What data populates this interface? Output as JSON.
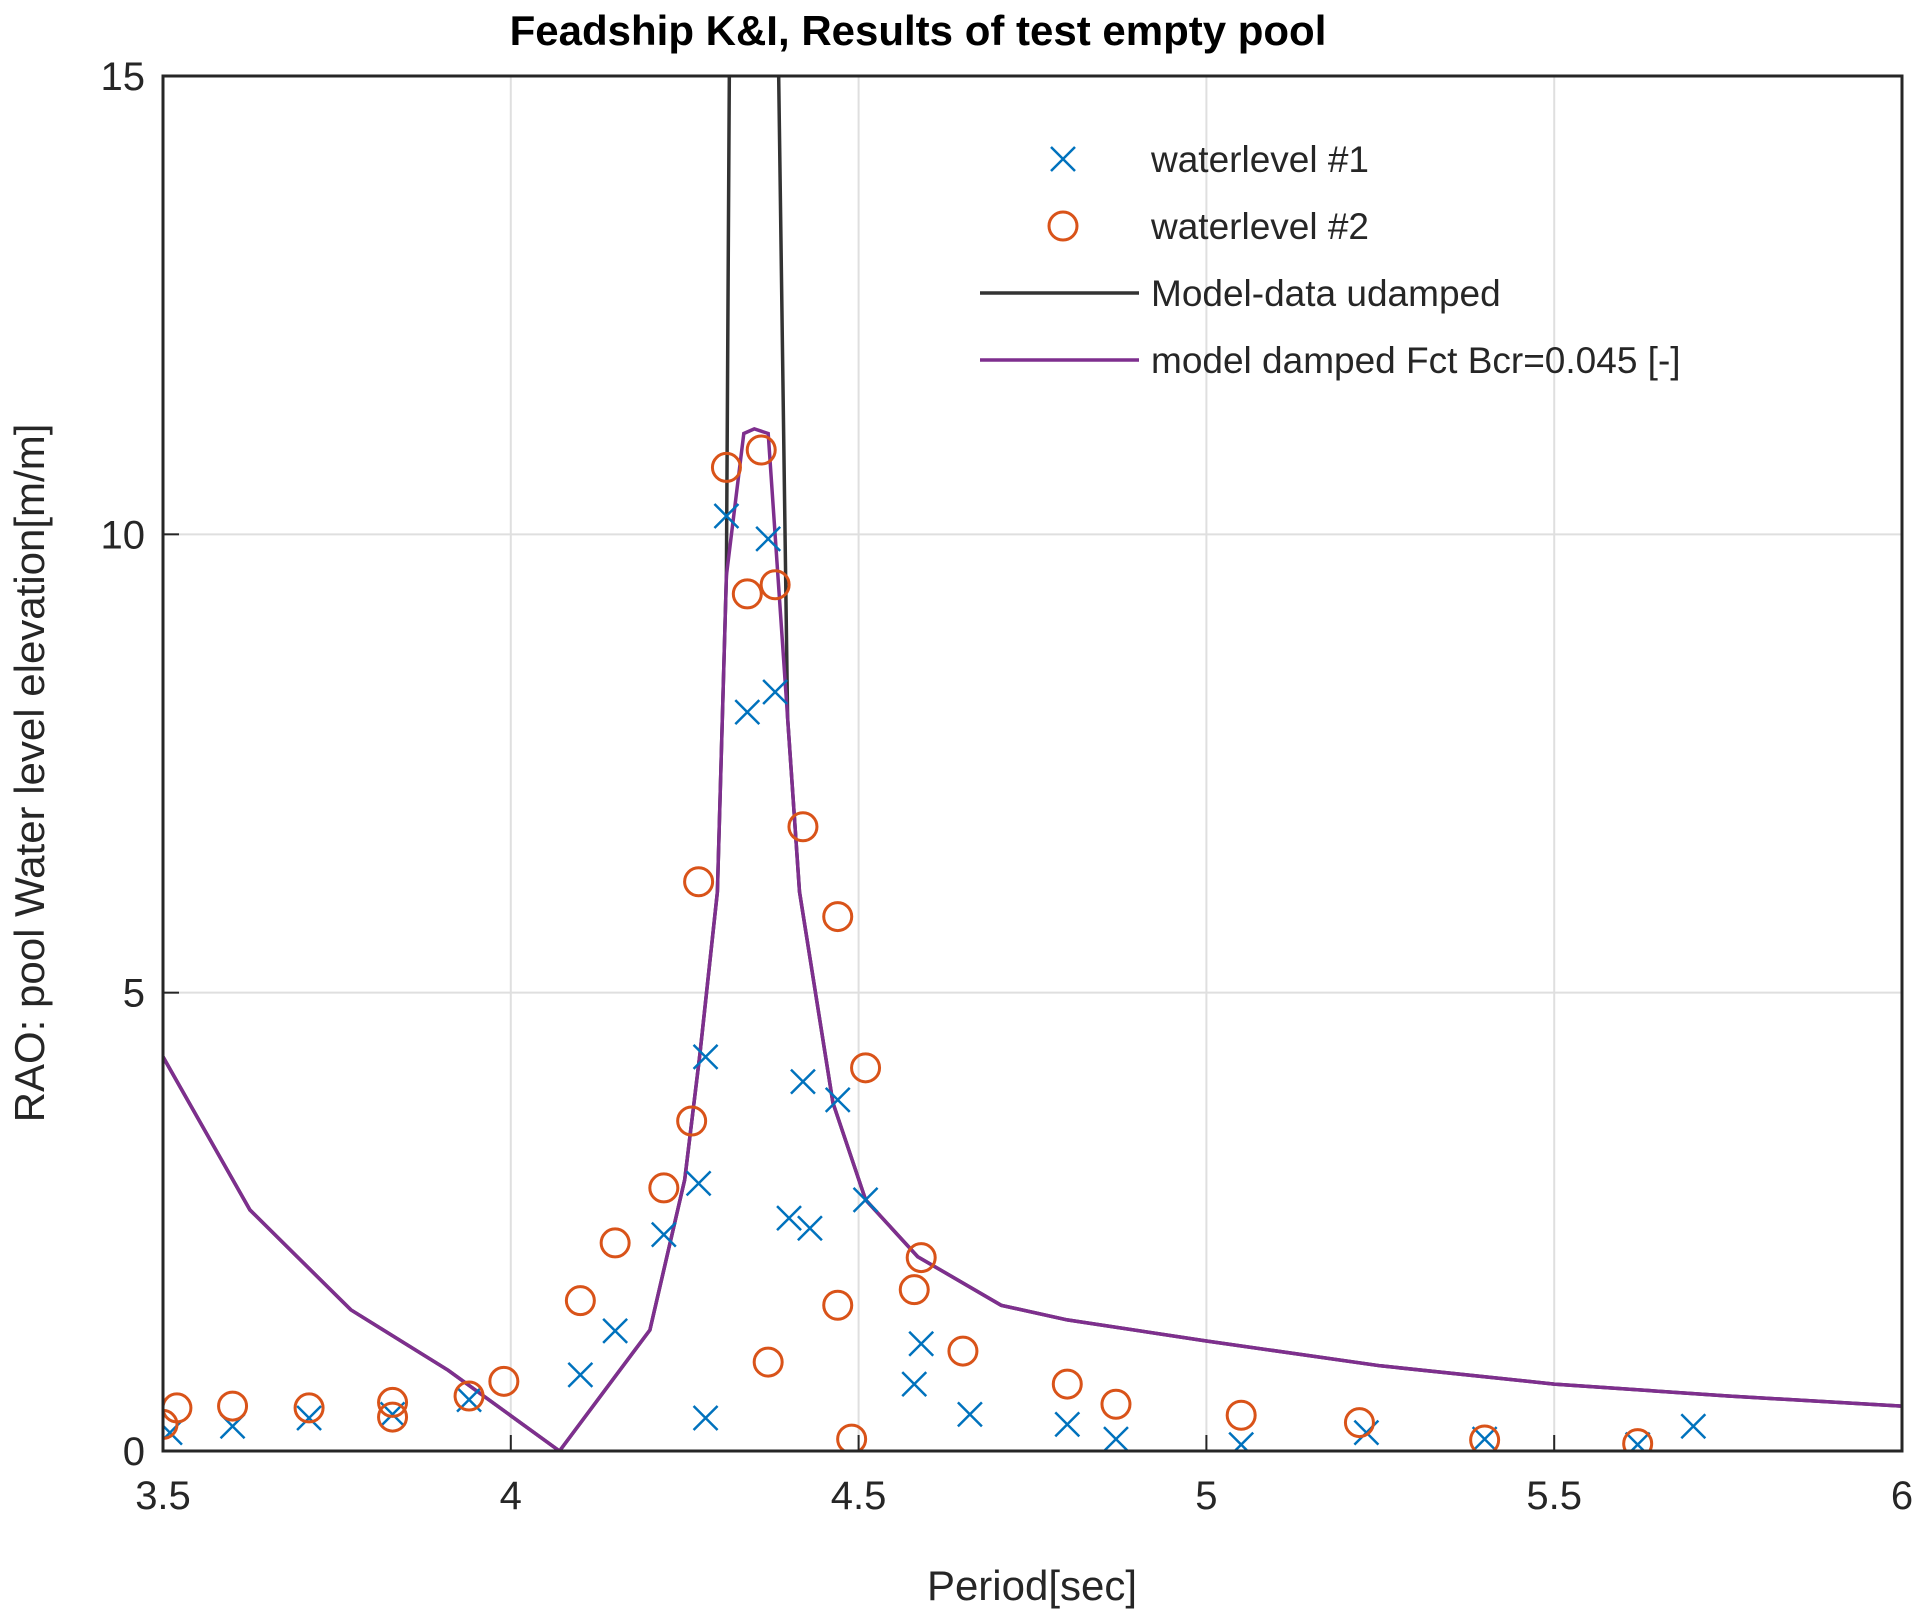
{
  "chart_data": {
    "type": "line",
    "title": "Feadship K&I, Results of test empty pool",
    "xlabel": "Period[sec]",
    "ylabel": "RAO: pool Water level elevation[m/m]",
    "xlim": [
      3.5,
      6
    ],
    "ylim": [
      0,
      15
    ],
    "xticks": [
      "3.5",
      "4",
      "4.5",
      "5",
      "5.5",
      "6"
    ],
    "yticks": [
      "0",
      "5",
      "10",
      "15"
    ],
    "grid": true,
    "legend_position": "top-right",
    "series": [
      {
        "name": "waterlevel #1",
        "kind": "scatter",
        "marker": "x",
        "color": "#0072BD",
        "x": [
          3.51,
          3.6,
          3.71,
          3.83,
          3.94,
          4.1,
          4.15,
          4.22,
          4.27,
          4.28,
          4.28,
          4.31,
          4.34,
          4.37,
          4.38,
          4.4,
          4.42,
          4.43,
          4.47,
          4.51,
          4.58,
          4.59,
          4.66,
          4.8,
          4.87,
          5.05,
          5.23,
          5.4,
          5.62,
          5.7
        ],
        "y": [
          0.2,
          0.27,
          0.36,
          0.4,
          0.56,
          0.83,
          1.31,
          2.36,
          2.92,
          4.3,
          0.36,
          10.2,
          8.06,
          9.95,
          8.28,
          2.54,
          4.03,
          2.43,
          3.83,
          2.74,
          0.73,
          1.17,
          0.4,
          0.29,
          0.13,
          0.07,
          0.2,
          0.13,
          0.07,
          0.27
        ]
      },
      {
        "name": "waterlevel #2",
        "kind": "scatter",
        "marker": "o",
        "color": "#D95319",
        "x": [
          3.5,
          3.52,
          3.6,
          3.71,
          3.83,
          3.83,
          3.94,
          3.99,
          4.1,
          4.15,
          4.22,
          4.26,
          4.27,
          4.31,
          4.34,
          4.36,
          4.38,
          4.37,
          4.42,
          4.47,
          4.47,
          4.49,
          4.51,
          4.58,
          4.59,
          4.65,
          4.8,
          4.87,
          5.05,
          5.22,
          5.4,
          5.62
        ],
        "y": [
          0.29,
          0.47,
          0.49,
          0.47,
          0.53,
          0.37,
          0.6,
          0.76,
          1.64,
          2.27,
          2.87,
          3.6,
          6.21,
          10.73,
          9.35,
          10.92,
          9.45,
          0.97,
          6.81,
          5.83,
          1.59,
          0.13,
          4.18,
          1.76,
          2.11,
          1.09,
          0.73,
          0.51,
          0.39,
          0.31,
          0.12,
          0.08
        ]
      },
      {
        "name": "Model-data udamped",
        "kind": "line",
        "color": "#333333",
        "x": [
          3.5,
          3.625,
          3.77,
          3.91,
          4.07,
          4.2,
          4.25,
          4.272,
          4.297,
          4.31,
          4.318,
          null,
          4.376,
          4.398,
          4.415,
          4.463,
          4.51,
          4.585,
          4.705,
          4.8,
          5.0,
          5.25,
          5.5,
          5.75,
          6.0
        ],
        "y": [
          4.3,
          2.63,
          1.54,
          0.88,
          0.0,
          1.32,
          2.96,
          4.34,
          6.1,
          9.55,
          20,
          null,
          20,
          8.0,
          6.1,
          3.8,
          2.74,
          2.12,
          1.59,
          1.43,
          1.2,
          0.93,
          0.73,
          0.6,
          0.49
        ]
      },
      {
        "name": "model damped Fct Bcr=0.045 [-]",
        "kind": "line",
        "color": "#7E2F8E",
        "x": [
          3.5,
          3.625,
          3.77,
          3.91,
          4.07,
          4.2,
          4.25,
          4.272,
          4.297,
          4.31,
          4.335,
          4.35,
          4.37,
          4.398,
          4.415,
          4.463,
          4.51,
          4.585,
          4.705,
          4.8,
          5.0,
          5.25,
          5.5,
          5.75,
          6.0
        ],
        "y": [
          4.3,
          2.63,
          1.54,
          0.88,
          0.0,
          1.32,
          2.96,
          4.34,
          6.1,
          9.55,
          11.1,
          11.15,
          11.1,
          8.0,
          6.1,
          3.8,
          2.74,
          2.12,
          1.59,
          1.43,
          1.2,
          0.93,
          0.73,
          0.6,
          0.49
        ]
      }
    ]
  }
}
